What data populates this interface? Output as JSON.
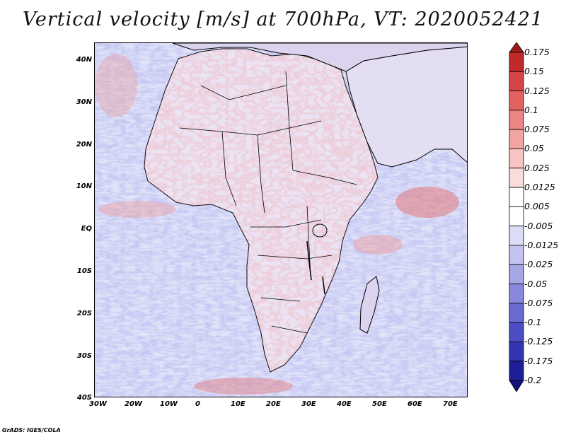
{
  "title": "Vertical velocity [m/s] at 700hPa, VT: 2020052421",
  "credit": "GrADS: IGES/COLA",
  "latitude_labels": [
    "40N",
    "30N",
    "20N",
    "10N",
    "EQ",
    "10S",
    "20S",
    "30S",
    "40S"
  ],
  "longitude_labels": [
    "30W",
    "20W",
    "10W",
    "0",
    "10E",
    "20E",
    "30E",
    "40E",
    "50E",
    "60E",
    "70E"
  ],
  "colorbar": {
    "levels": [
      "0.175",
      "0.15",
      "0.125",
      "0.1",
      "0.075",
      "0.05",
      "0.025",
      "0.0125",
      "0.005",
      "-0.005",
      "-0.0125",
      "-0.025",
      "-0.05",
      "-0.075",
      "-0.1",
      "-0.125",
      "-0.175",
      "-0.2"
    ],
    "colors": [
      "#a01818",
      "#c02a2a",
      "#d64545",
      "#e26262",
      "#ec8484",
      "#f2a3a3",
      "#f7c3c3",
      "#fbdcdc",
      "#ffffff",
      "#ffffff",
      "#dcdcf6",
      "#c3c3ef",
      "#a6a6e6",
      "#8888dc",
      "#6a6ad0",
      "#4e4ec4",
      "#3434b0",
      "#1e1e98",
      "#14107e"
    ]
  },
  "map": {
    "ocean_color": "#d9dcf6",
    "land_color": "#ebe3f4",
    "coastline_color": "#000000"
  }
}
